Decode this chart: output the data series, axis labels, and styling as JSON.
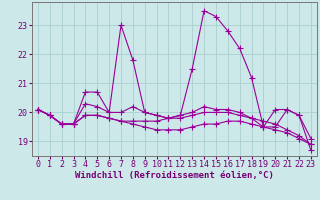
{
  "xlabel": "Windchill (Refroidissement éolien,°C)",
  "x": [
    0,
    1,
    2,
    3,
    4,
    5,
    6,
    7,
    8,
    9,
    10,
    11,
    12,
    13,
    14,
    15,
    16,
    17,
    18,
    19,
    20,
    21,
    22,
    23
  ],
  "line1": [
    20.1,
    19.9,
    19.6,
    19.6,
    20.7,
    20.7,
    20.0,
    23.0,
    21.8,
    20.0,
    19.9,
    19.8,
    19.9,
    21.5,
    23.5,
    23.3,
    22.8,
    22.2,
    21.2,
    19.5,
    20.1,
    20.1,
    19.9,
    19.1
  ],
  "line2": [
    20.1,
    19.9,
    19.6,
    19.6,
    20.3,
    20.2,
    20.0,
    20.0,
    20.2,
    20.0,
    19.9,
    19.8,
    19.9,
    20.0,
    20.2,
    20.1,
    20.1,
    20.0,
    19.8,
    19.5,
    19.5,
    20.1,
    19.9,
    18.7
  ],
  "line3": [
    20.1,
    19.9,
    19.6,
    19.6,
    19.9,
    19.9,
    19.8,
    19.7,
    19.6,
    19.5,
    19.4,
    19.4,
    19.4,
    19.5,
    19.6,
    19.6,
    19.7,
    19.7,
    19.6,
    19.5,
    19.4,
    19.3,
    19.1,
    18.9
  ],
  "line4": [
    20.1,
    19.9,
    19.6,
    19.6,
    19.9,
    19.9,
    19.8,
    19.7,
    19.7,
    19.7,
    19.7,
    19.8,
    19.8,
    19.9,
    20.0,
    20.0,
    20.0,
    19.9,
    19.8,
    19.7,
    19.6,
    19.4,
    19.2,
    18.9
  ],
  "line_color": "#990099",
  "bg_color": "#cce8e8",
  "grid_color": "#aad0d0",
  "ylim": [
    18.5,
    23.8
  ],
  "xlim": [
    -0.5,
    23.5
  ],
  "yticks": [
    19,
    20,
    21,
    22,
    23
  ],
  "xticks": [
    0,
    1,
    2,
    3,
    4,
    5,
    6,
    7,
    8,
    9,
    10,
    11,
    12,
    13,
    14,
    15,
    16,
    17,
    18,
    19,
    20,
    21,
    22,
    23
  ],
  "marker": "+",
  "markersize": 4,
  "linewidth": 0.8,
  "tick_labelsize": 6,
  "xlabel_fontsize": 6.5
}
